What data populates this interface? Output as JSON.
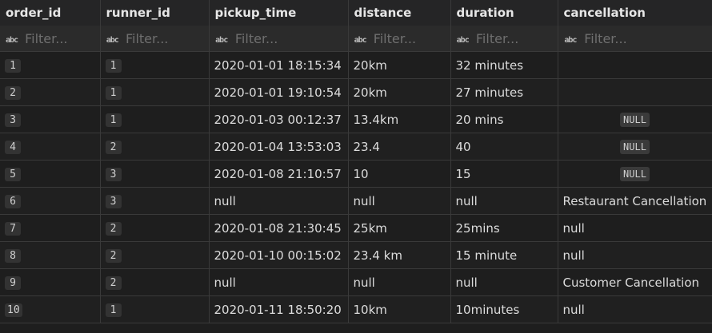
{
  "columns": [
    "order_id",
    "runner_id",
    "pickup_time",
    "distance",
    "duration",
    "cancellation"
  ],
  "filter": {
    "placeholder": "Filter...",
    "icon": "abc-text-icon"
  },
  "null_label": "NULL",
  "rows": [
    {
      "order_id": "1",
      "runner_id": "1",
      "pickup_time": "2020-01-01 18:15:34",
      "distance": "20km",
      "duration": "32 minutes",
      "cancellation": ""
    },
    {
      "order_id": "2",
      "runner_id": "1",
      "pickup_time": "2020-01-01 19:10:54",
      "distance": "20km",
      "duration": "27 minutes",
      "cancellation": ""
    },
    {
      "order_id": "3",
      "runner_id": "1",
      "pickup_time": "2020-01-03 00:12:37",
      "distance": "13.4km",
      "duration": "20 mins",
      "cancellation": null
    },
    {
      "order_id": "4",
      "runner_id": "2",
      "pickup_time": "2020-01-04 13:53:03",
      "distance": "23.4",
      "duration": "40",
      "cancellation": null
    },
    {
      "order_id": "5",
      "runner_id": "3",
      "pickup_time": "2020-01-08 21:10:57",
      "distance": "10",
      "duration": "15",
      "cancellation": null
    },
    {
      "order_id": "6",
      "runner_id": "3",
      "pickup_time": "null",
      "distance": "null",
      "duration": "null",
      "cancellation": "Restaurant Cancellation"
    },
    {
      "order_id": "7",
      "runner_id": "2",
      "pickup_time": "2020-01-08 21:30:45",
      "distance": "25km",
      "duration": "25mins",
      "cancellation": "null"
    },
    {
      "order_id": "8",
      "runner_id": "2",
      "pickup_time": "2020-01-10 00:15:02",
      "distance": "23.4 km",
      "duration": "15 minute",
      "cancellation": "null"
    },
    {
      "order_id": "9",
      "runner_id": "2",
      "pickup_time": "null",
      "distance": "null",
      "duration": "null",
      "cancellation": "Customer Cancellation"
    },
    {
      "order_id": "10",
      "runner_id": "1",
      "pickup_time": "2020-01-11 18:50:20",
      "distance": "10km",
      "duration": "10minutes",
      "cancellation": "null"
    }
  ]
}
